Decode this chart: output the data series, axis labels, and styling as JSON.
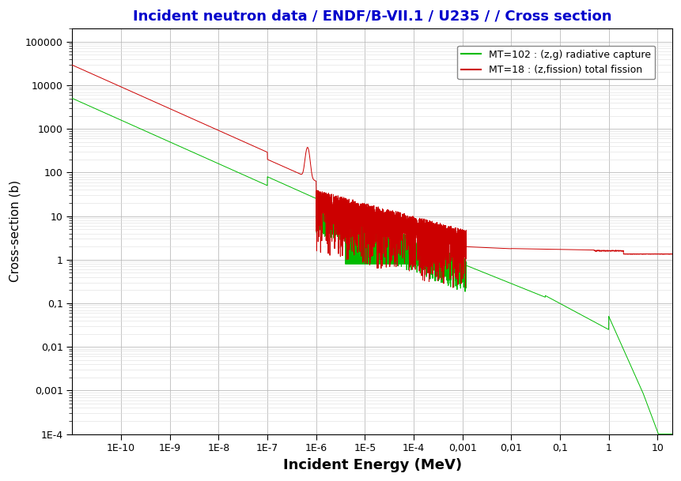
{
  "title": "Incident neutron data / ENDF/B-VII.1 / U235 / / Cross section",
  "title_color": "#0000CC",
  "title_fontsize": 13,
  "xlabel": "Incident Energy (MeV)",
  "ylabel": "Cross-section (b)",
  "xlabel_fontsize": 13,
  "ylabel_fontsize": 11,
  "background_color": "#ffffff",
  "grid_color": "#bbbbbb",
  "legend_label_capture": "MT=102 : (z,g) radiative capture",
  "legend_label_fission": "MT=18 : (z,fission) total fission",
  "capture_color": "#00bb00",
  "fission_color": "#cc0000",
  "ytick_labels": [
    "1E-4",
    "0,001",
    "0,01",
    "0,1",
    "1",
    "10",
    "100",
    "1000",
    "10000",
    "100000"
  ],
  "ytick_values": [
    0.0001,
    0.001,
    0.01,
    0.1,
    1.0,
    10.0,
    100.0,
    1000.0,
    10000.0,
    100000.0
  ],
  "xtick_labels": [
    "1E-10",
    "1E-9",
    "1E-8",
    "1E-7",
    "1E-6",
    "1E-5",
    "1E-4",
    "0,001",
    "0,01",
    "0,1",
    "1",
    "10"
  ],
  "xtick_values": [
    1e-10,
    1e-09,
    1e-08,
    1e-07,
    1e-06,
    1e-05,
    0.0001,
    0.001,
    0.01,
    0.1,
    1.0,
    10.0
  ]
}
